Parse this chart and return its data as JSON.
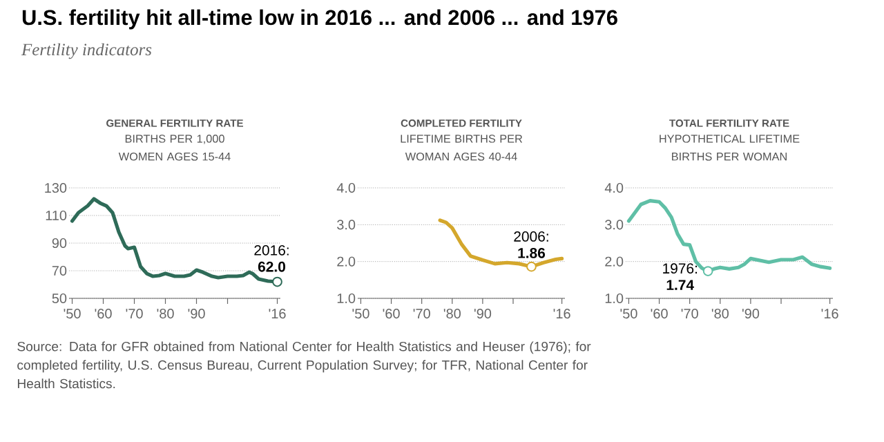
{
  "chart_data": [
    {
      "type": "other",
      "title": "U.S. fertility hit all-time low in 2016 ... and 2006 ... and 1976",
      "subtitle": "Fertility indicators",
      "annotations": [
        "Source: Data for GFR obtained from National Center for Health Statistics and Heuser (1976); for completed fertility, U.S. Census Bureau, Current Population Survey; for TFR, National Center for Health Statistics."
      ]
    },
    {
      "type": "line",
      "title": "GENERAL FERTILITY RATE",
      "subtitle": "BIRTHS PER 1,000 WOMEN AGES 15-44",
      "marker": "none",
      "grid": "y",
      "xlim": [
        1949,
        2017
      ],
      "xticks": [
        {
          "value": 1950,
          "label": "'50"
        },
        {
          "value": 1960,
          "label": "'60"
        },
        {
          "value": 1970,
          "label": "'70"
        },
        {
          "value": 1980,
          "label": "'80"
        },
        {
          "value": 1990,
          "label": "'90"
        },
        {
          "value": 2000,
          "label": null
        },
        {
          "value": 2016,
          "label": "'16"
        }
      ],
      "ylim": [
        50,
        130
      ],
      "yticks": [
        50,
        70,
        90,
        110,
        130
      ],
      "series": [
        {
          "color": "#2e6b58",
          "x": [
            1950,
            1952,
            1955,
            1957,
            1959,
            1961,
            1963,
            1965,
            1967,
            1968,
            1970,
            1972,
            1974,
            1976,
            1978,
            1980,
            1983,
            1986,
            1988,
            1990,
            1992,
            1995,
            1997,
            2000,
            2003,
            2005,
            2007,
            2008,
            2010,
            2013,
            2016
          ],
          "values": [
            106,
            112,
            117,
            122,
            119,
            117,
            112,
            98,
            88,
            86,
            87,
            73,
            68,
            66,
            66.5,
            68,
            66,
            66,
            67,
            70.5,
            69,
            66,
            65,
            66,
            66,
            66.5,
            69,
            68,
            64,
            62.5,
            62.0
          ]
        }
      ],
      "annotations": [
        {
          "text": "2016: **62.0**",
          "x": 2016,
          "y": 62.0
        }
      ]
    },
    {
      "type": "line",
      "title": "COMPLETED FERTILITY",
      "subtitle": "LIFETIME BIRTHS PER WOMAN AGES 40-44",
      "marker": "none",
      "grid": "y",
      "xlim": [
        1949,
        2017
      ],
      "xticks": [
        {
          "value": 1950,
          "label": "'50"
        },
        {
          "value": 1960,
          "label": "'60"
        },
        {
          "value": 1970,
          "label": "'70"
        },
        {
          "value": 1980,
          "label": "'80"
        },
        {
          "value": 1990,
          "label": "'90"
        },
        {
          "value": 2000,
          "label": null
        },
        {
          "value": 2016,
          "label": "'16"
        }
      ],
      "ylim": [
        1,
        4
      ],
      "yticks": [
        {
          "value": 1,
          "label": "1.0"
        },
        {
          "value": 2,
          "label": "2.0"
        },
        {
          "value": 3,
          "label": "3.0"
        },
        {
          "value": 4,
          "label": "4.0"
        }
      ],
      "series": [
        {
          "color": "#d4a72c",
          "x": [
            1976,
            1978,
            1980,
            1983,
            1986,
            1990,
            1994,
            1998,
            2002,
            2006,
            2010,
            2014,
            2016
          ],
          "values": [
            3.12,
            3.06,
            2.91,
            2.48,
            2.15,
            2.04,
            1.94,
            1.97,
            1.94,
            1.86,
            1.97,
            2.06,
            2.08
          ]
        }
      ],
      "annotations": [
        {
          "text": "2006: **1.86**",
          "x": 2006,
          "y": 1.86
        }
      ]
    },
    {
      "type": "line",
      "title": "TOTAL FERTILITY RATE",
      "subtitle": "HYPOTHETICAL LIFETIME BIRTHS PER WOMAN",
      "marker": "none",
      "grid": "y",
      "xlim": [
        1949,
        2017
      ],
      "xticks": [
        {
          "value": 1950,
          "label": "'50"
        },
        {
          "value": 1960,
          "label": "'60"
        },
        {
          "value": 1970,
          "label": "'70"
        },
        {
          "value": 1980,
          "label": "'80"
        },
        {
          "value": 1990,
          "label": "'90"
        },
        {
          "value": 2000,
          "label": null
        },
        {
          "value": 2016,
          "label": "'16"
        }
      ],
      "ylim": [
        1,
        4
      ],
      "yticks": [
        {
          "value": 1,
          "label": "1.0"
        },
        {
          "value": 2,
          "label": "2.0"
        },
        {
          "value": 3,
          "label": "3.0"
        },
        {
          "value": 4,
          "label": "4.0"
        }
      ],
      "series": [
        {
          "color": "#5fbfa6",
          "x": [
            1950,
            1954,
            1957,
            1960,
            1962,
            1964,
            1966,
            1968,
            1970,
            1972,
            1974,
            1976,
            1978,
            1980,
            1983,
            1986,
            1988,
            1990,
            1993,
            1996,
            2000,
            2004,
            2007,
            2010,
            2013,
            2016
          ],
          "values": [
            3.1,
            3.55,
            3.65,
            3.62,
            3.45,
            3.2,
            2.75,
            2.47,
            2.45,
            2.0,
            1.82,
            1.74,
            1.8,
            1.84,
            1.8,
            1.84,
            1.93,
            2.08,
            2.03,
            1.98,
            2.05,
            2.05,
            2.12,
            1.93,
            1.86,
            1.82
          ]
        }
      ],
      "annotations": [
        {
          "text": "1976: **1.74**",
          "x": 1976,
          "y": 1.74
        }
      ]
    }
  ]
}
